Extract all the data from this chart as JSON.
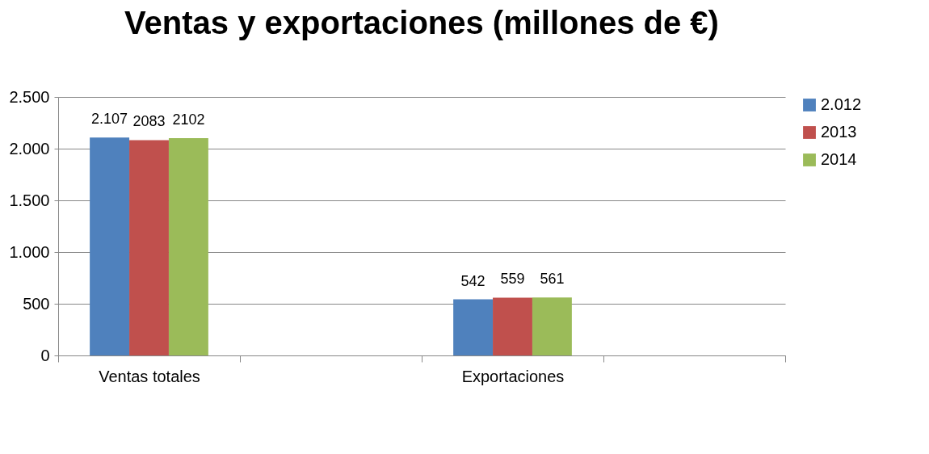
{
  "chart_data": {
    "type": "bar",
    "title": "Ventas y exportaciones (millones de €)",
    "categories": [
      "Ventas totales",
      null,
      "Exportaciones",
      null
    ],
    "series": [
      {
        "name": "2.012",
        "color": "#4f81bd",
        "values": [
          2107,
          null,
          542,
          null
        ],
        "value_labels": [
          "2.107",
          null,
          "542",
          null
        ]
      },
      {
        "name": "2013",
        "color": "#c0504d",
        "values": [
          2083,
          null,
          559,
          null
        ],
        "value_labels": [
          "2083",
          null,
          "559",
          null
        ]
      },
      {
        "name": "2014",
        "color": "#9bbb59",
        "values": [
          2102,
          null,
          561,
          null
        ],
        "value_labels": [
          "2102",
          null,
          "561",
          null
        ]
      }
    ],
    "ylim": [
      0,
      2500
    ],
    "yticks": [
      0,
      500,
      {
        "value": 1000,
        "label": "1.000"
      },
      {
        "value": 1500,
        "label": "1.500"
      },
      {
        "value": 2000,
        "label": "2.000"
      },
      {
        "value": 2500,
        "label": "2.500"
      }
    ],
    "grid": "y",
    "legend": "right"
  }
}
